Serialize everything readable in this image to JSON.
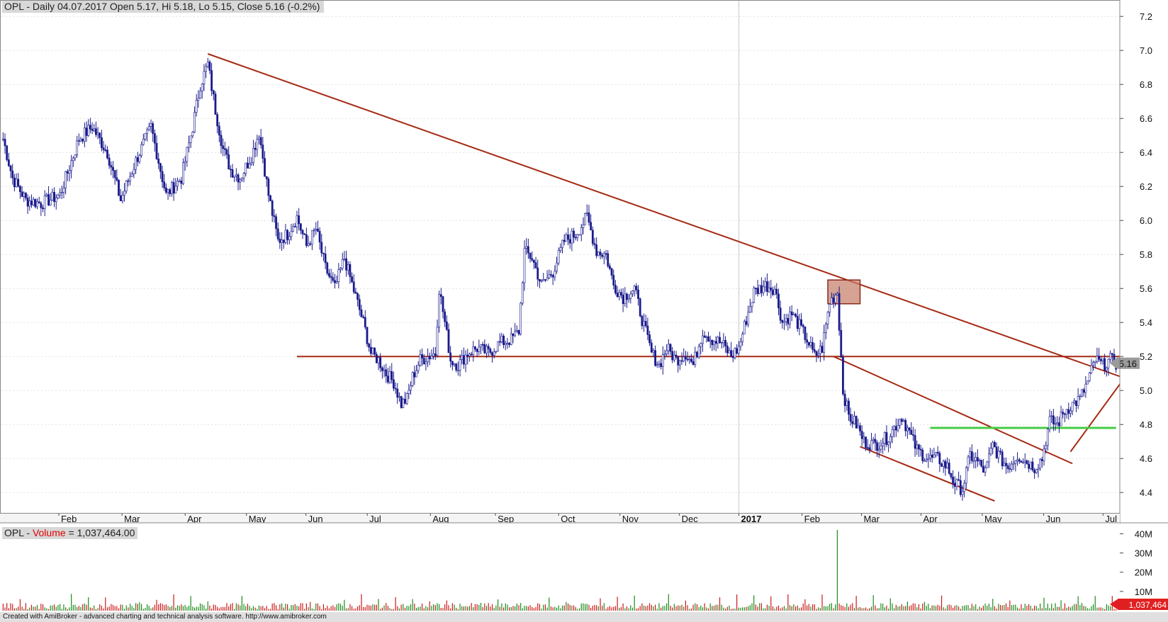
{
  "header": {
    "price_line": "OPL - Daily 04.07.2017 Open 5.17, Hi 5.18, Lo 5.15, Close 5.16 (-0.2%)",
    "volume_symbol": "OPL",
    "volume_sep": " - ",
    "volume_name": "Volume",
    "volume_value": " = 1,037,464.00"
  },
  "footer": {
    "text": "Created with AmiBroker - advanced charting and technical analysis software. http://www.amibroker.com"
  },
  "chart_data": {
    "type": "ohlc-bar",
    "symbol": "OPL",
    "x_labels": [
      "Feb",
      "Mar",
      "Apr",
      "May",
      "Jun",
      "Jul",
      "Aug",
      "Sep",
      "Oct",
      "Nov",
      "Dec",
      "2017",
      "Feb",
      "Mar",
      "Apr",
      "May",
      "Jun",
      "Jul"
    ],
    "y_ticks": [
      4.4,
      4.6,
      4.8,
      5.0,
      5.2,
      5.4,
      5.6,
      5.8,
      6.0,
      6.2,
      6.4,
      6.6,
      6.8,
      7.0,
      7.2
    ],
    "ylim": [
      4.28,
      7.28
    ],
    "last_close_label": "5.16",
    "keypoints": [
      [
        0,
        6.48
      ],
      [
        5,
        6.25
      ],
      [
        12,
        6.12
      ],
      [
        20,
        6.1
      ],
      [
        30,
        6.15
      ],
      [
        40,
        6.48
      ],
      [
        47,
        6.55
      ],
      [
        55,
        6.4
      ],
      [
        62,
        6.12
      ],
      [
        70,
        6.35
      ],
      [
        78,
        6.55
      ],
      [
        86,
        6.15
      ],
      [
        94,
        6.25
      ],
      [
        100,
        6.55
      ],
      [
        104,
        6.8
      ],
      [
        108,
        6.92
      ],
      [
        112,
        6.65
      ],
      [
        116,
        6.42
      ],
      [
        120,
        6.3
      ],
      [
        125,
        6.25
      ],
      [
        131,
        6.38
      ],
      [
        135,
        6.52
      ],
      [
        140,
        6.15
      ],
      [
        145,
        5.88
      ],
      [
        150,
        5.92
      ],
      [
        155,
        6.02
      ],
      [
        160,
        5.85
      ],
      [
        165,
        5.95
      ],
      [
        170,
        5.72
      ],
      [
        175,
        5.6
      ],
      [
        180,
        5.78
      ],
      [
        186,
        5.55
      ],
      [
        190,
        5.4
      ],
      [
        194,
        5.22
      ],
      [
        198,
        5.18
      ],
      [
        202,
        5.1
      ],
      [
        206,
        5.05
      ],
      [
        210,
        4.92
      ],
      [
        213,
        4.95
      ],
      [
        216,
        5.08
      ],
      [
        220,
        5.18
      ],
      [
        224,
        5.2
      ],
      [
        228,
        5.22
      ],
      [
        230,
        5.6
      ],
      [
        233,
        5.4
      ],
      [
        236,
        5.18
      ],
      [
        240,
        5.15
      ],
      [
        245,
        5.22
      ],
      [
        250,
        5.25
      ],
      [
        256,
        5.22
      ],
      [
        262,
        5.28
      ],
      [
        268,
        5.3
      ],
      [
        272,
        5.35
      ],
      [
        275,
        5.82
      ],
      [
        279,
        5.78
      ],
      [
        284,
        5.62
      ],
      [
        290,
        5.7
      ],
      [
        296,
        5.88
      ],
      [
        302,
        5.92
      ],
      [
        308,
        6.02
      ],
      [
        313,
        5.82
      ],
      [
        318,
        5.8
      ],
      [
        322,
        5.62
      ],
      [
        327,
        5.55
      ],
      [
        333,
        5.6
      ],
      [
        337,
        5.42
      ],
      [
        342,
        5.22
      ],
      [
        346,
        5.15
      ],
      [
        350,
        5.25
      ],
      [
        355,
        5.18
      ],
      [
        360,
        5.22
      ],
      [
        364,
        5.15
      ],
      [
        369,
        5.35
      ],
      [
        374,
        5.3
      ],
      [
        379,
        5.28
      ],
      [
        384,
        5.2
      ],
      [
        388,
        5.25
      ],
      [
        392,
        5.42
      ],
      [
        396,
        5.58
      ],
      [
        402,
        5.62
      ],
      [
        407,
        5.6
      ],
      [
        411,
        5.4
      ],
      [
        416,
        5.45
      ],
      [
        420,
        5.38
      ],
      [
        424,
        5.3
      ],
      [
        428,
        5.2
      ],
      [
        432,
        5.25
      ],
      [
        436,
        5.52
      ],
      [
        440,
        5.58
      ],
      [
        443,
        5.0
      ],
      [
        446,
        4.85
      ],
      [
        450,
        4.8
      ],
      [
        454,
        4.7
      ],
      [
        460,
        4.68
      ],
      [
        466,
        4.72
      ],
      [
        470,
        4.78
      ],
      [
        474,
        4.85
      ],
      [
        478,
        4.75
      ],
      [
        482,
        4.65
      ],
      [
        488,
        4.6
      ],
      [
        493,
        4.6
      ],
      [
        498,
        4.55
      ],
      [
        502,
        4.45
      ],
      [
        506,
        4.42
      ],
      [
        510,
        4.62
      ],
      [
        514,
        4.58
      ],
      [
        518,
        4.52
      ],
      [
        522,
        4.68
      ],
      [
        526,
        4.6
      ],
      [
        530,
        4.55
      ],
      [
        535,
        4.62
      ],
      [
        540,
        4.58
      ],
      [
        544,
        4.55
      ],
      [
        548,
        4.6
      ],
      [
        552,
        4.82
      ],
      [
        556,
        4.8
      ],
      [
        560,
        4.88
      ],
      [
        564,
        4.92
      ],
      [
        568,
        4.95
      ],
      [
        572,
        5.05
      ],
      [
        576,
        5.18
      ],
      [
        580,
        5.15
      ],
      [
        584,
        5.18
      ],
      [
        587,
        5.16
      ]
    ],
    "lines": [
      {
        "name": "downtrend",
        "color": "#a52a14",
        "points": [
          [
            108,
            6.98
          ],
          [
            610,
            5.0
          ]
        ]
      },
      {
        "name": "support",
        "color": "#a52a14",
        "points": [
          [
            155,
            5.2
          ],
          [
            610,
            5.2
          ]
        ]
      },
      {
        "name": "channel-upper",
        "color": "#a52a14",
        "points": [
          [
            438,
            5.2
          ],
          [
            564,
            4.57
          ]
        ]
      },
      {
        "name": "channel-lower",
        "color": "#a52a14",
        "points": [
          [
            452,
            4.67
          ],
          [
            523,
            4.35
          ]
        ]
      },
      {
        "name": "uptrend",
        "color": "#a52a14",
        "points": [
          [
            563,
            4.64
          ],
          [
            601,
            5.22
          ]
        ]
      },
      {
        "name": "neckline",
        "color": "#44cc44",
        "points": [
          [
            489,
            4.78
          ],
          [
            587,
            4.78
          ]
        ]
      }
    ],
    "highlight_box": {
      "x": [
        435,
        452
      ],
      "y": [
        5.51,
        5.65
      ],
      "color": "#c47a66"
    },
    "volume": {
      "ticks": [
        "10M",
        "20M",
        "30M",
        "40M"
      ],
      "ymax": 42000000,
      "last_value_label": "1,037,464",
      "spike": {
        "x": 440,
        "value": 42000000
      },
      "base_value": 2000000
    },
    "colors": {
      "bar": "#1a1a8c",
      "up": "#1a8c1a",
      "down": "#cc1a1a",
      "grid": "#c8c8c8",
      "trend": "#a52a14",
      "neckline": "#44cc44"
    },
    "n_bars": 588
  }
}
